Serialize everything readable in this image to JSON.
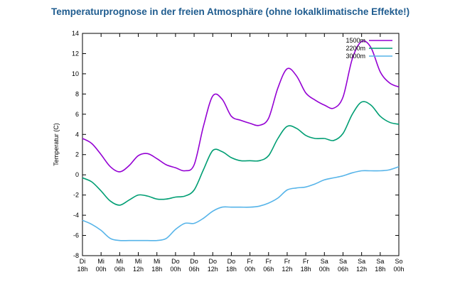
{
  "chart_data": {
    "type": "line",
    "title": "Temperaturprognose in der freien Atmosphäre (ohne lokalklimatische Effekte!)",
    "ylabel": "Temperatur (C)",
    "xlabel": "",
    "ylim": [
      -8,
      14
    ],
    "yticks": [
      -8,
      -6,
      -4,
      -2,
      0,
      2,
      4,
      6,
      8,
      10,
      12,
      14
    ],
    "grid": false,
    "legend_position": "top-right",
    "categories": [
      [
        "Di",
        "18h"
      ],
      [
        "Mi",
        "00h"
      ],
      [
        "Mi",
        "06h"
      ],
      [
        "Mi",
        "12h"
      ],
      [
        "Mi",
        "18h"
      ],
      [
        "Do",
        "00h"
      ],
      [
        "Do",
        "06h"
      ],
      [
        "Do",
        "12h"
      ],
      [
        "Do",
        "18h"
      ],
      [
        "Fr",
        "00h"
      ],
      [
        "Fr",
        "06h"
      ],
      [
        "Fr",
        "12h"
      ],
      [
        "Fr",
        "18h"
      ],
      [
        "Sa",
        "00h"
      ],
      [
        "Sa",
        "06h"
      ],
      [
        "Sa",
        "12h"
      ],
      [
        "Sa",
        "18h"
      ],
      [
        "So",
        "00h"
      ]
    ],
    "series": [
      {
        "name": "1500m",
        "color": "#9400d3",
        "x": [
          0,
          0.5,
          1,
          1.5,
          2,
          2.5,
          3,
          3.5,
          4,
          4.5,
          5,
          5.5,
          6,
          6.5,
          7,
          7.5,
          8,
          8.5,
          9,
          9.5,
          10,
          10.5,
          11,
          11.5,
          12,
          12.5,
          13,
          13.5,
          14,
          14.5,
          15,
          15.5,
          16,
          16.5,
          17
        ],
        "values": [
          3.6,
          3.1,
          2.0,
          0.8,
          0.3,
          0.9,
          1.9,
          2.1,
          1.6,
          1.0,
          0.7,
          0.4,
          1.0,
          4.8,
          7.8,
          7.5,
          5.8,
          5.4,
          5.1,
          4.9,
          5.6,
          8.6,
          10.5,
          9.8,
          8.1,
          7.4,
          6.9,
          6.6,
          7.7,
          11.5,
          13.2,
          12.6,
          10.2,
          9.1,
          8.7
        ]
      },
      {
        "name": "2200m",
        "color": "#009e73",
        "x": [
          0,
          0.5,
          1,
          1.5,
          2,
          2.5,
          3,
          3.5,
          4,
          4.5,
          5,
          5.5,
          6,
          6.5,
          7,
          7.5,
          8,
          8.5,
          9,
          9.5,
          10,
          10.5,
          11,
          11.5,
          12,
          12.5,
          13,
          13.5,
          14,
          14.5,
          15,
          15.5,
          16,
          16.5,
          17
        ],
        "values": [
          -0.3,
          -0.7,
          -1.6,
          -2.6,
          -3.0,
          -2.5,
          -2.0,
          -2.1,
          -2.4,
          -2.4,
          -2.2,
          -2.1,
          -1.5,
          0.5,
          2.4,
          2.3,
          1.7,
          1.4,
          1.4,
          1.4,
          1.9,
          3.6,
          4.8,
          4.6,
          3.9,
          3.6,
          3.6,
          3.4,
          4.1,
          6.0,
          7.2,
          6.9,
          5.8,
          5.2,
          5.0
        ]
      },
      {
        "name": "3000m",
        "color": "#56b4e9",
        "x": [
          0,
          0.5,
          1,
          1.5,
          2,
          2.5,
          3,
          3.5,
          4,
          4.5,
          5,
          5.5,
          6,
          6.5,
          7,
          7.5,
          8,
          8.5,
          9,
          9.5,
          10,
          10.5,
          11,
          11.5,
          12,
          12.5,
          13,
          13.5,
          14,
          14.5,
          15,
          15.5,
          16,
          16.5,
          17
        ],
        "values": [
          -4.5,
          -4.9,
          -5.5,
          -6.3,
          -6.5,
          -6.5,
          -6.5,
          -6.5,
          -6.5,
          -6.3,
          -5.4,
          -4.8,
          -4.8,
          -4.3,
          -3.6,
          -3.2,
          -3.2,
          -3.2,
          -3.2,
          -3.1,
          -2.8,
          -2.3,
          -1.5,
          -1.3,
          -1.2,
          -0.9,
          -0.5,
          -0.3,
          -0.1,
          0.2,
          0.4,
          0.4,
          0.4,
          0.5,
          0.8
        ]
      }
    ]
  }
}
